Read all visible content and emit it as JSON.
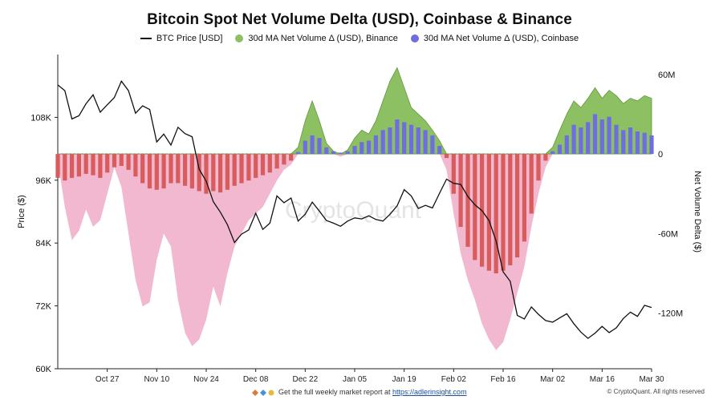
{
  "title": "Bitcoin Spot Net Volume Delta (USD), Coinbase & Binance",
  "legend": [
    {
      "label": "BTC Price [USD]",
      "color": "#111111",
      "kind": "line"
    },
    {
      "label": "30d MA Net Volume Δ (USD), Binance",
      "color": "#8cc063",
      "kind": "dot"
    },
    {
      "label": "30d MA Net Volume Δ (USD), Coinbase",
      "color": "#6e6ee0",
      "kind": "dot"
    }
  ],
  "watermark": "CryptoQuant",
  "footer": {
    "text": "Get the full weekly market report at ",
    "link": "https://adlerinsight.com",
    "copyright": "© CryptoQuant. All rights reserved"
  },
  "colors": {
    "price": "#111111",
    "binance_pos": "#8cc063",
    "binance_neg": "#f2b8cf",
    "coinbase_pos": "#6e6ee0",
    "coinbase_neg": "#d85c5c"
  },
  "chart_data": {
    "type": "line",
    "xlabel": "",
    "ylabel": "Price ($)",
    "ylabel_right": "Net Volume Delta ($)",
    "x_ticks": [
      "Oct 27",
      "Nov 10",
      "Nov 24",
      "Dec 08",
      "Dec 22",
      "Jan 05",
      "Jan 19",
      "Feb 02",
      "Feb 16",
      "Mar 02",
      "Mar 16",
      "Mar 30"
    ],
    "left_ticks": [
      "108K",
      "96K",
      "84K",
      "72K",
      "60K"
    ],
    "right_ticks": [
      "60M",
      "0",
      "-60M",
      "-120M"
    ],
    "ylim_left": [
      60000,
      120000
    ],
    "ylim_right": [
      -162000000,
      75000000
    ],
    "x_range_days": [
      -7,
      77
    ],
    "series": [
      {
        "name": "BTC Price [USD]",
        "points": [
          [
            -7,
            114200
          ],
          [
            -6,
            113100
          ],
          [
            -5,
            107700
          ],
          [
            -4,
            108300
          ],
          [
            -3,
            110600
          ],
          [
            -2,
            112300
          ],
          [
            -1,
            109000
          ],
          [
            0,
            110400
          ],
          [
            1,
            111800
          ],
          [
            2,
            114900
          ],
          [
            3,
            113100
          ],
          [
            4,
            108800
          ],
          [
            5,
            110200
          ],
          [
            6,
            109500
          ],
          [
            7,
            103300
          ],
          [
            8,
            104800
          ],
          [
            9,
            102700
          ],
          [
            10,
            106100
          ],
          [
            11,
            104900
          ],
          [
            12,
            104300
          ],
          [
            13,
            98100
          ],
          [
            14,
            95800
          ],
          [
            15,
            91900
          ],
          [
            16,
            89900
          ],
          [
            17,
            87500
          ],
          [
            18,
            84100
          ],
          [
            19,
            85700
          ],
          [
            20,
            86500
          ],
          [
            21,
            89700
          ],
          [
            22,
            86600
          ],
          [
            23,
            87800
          ],
          [
            24,
            93000
          ],
          [
            25,
            91700
          ],
          [
            26,
            92600
          ],
          [
            27,
            88200
          ],
          [
            28,
            89500
          ],
          [
            29,
            91800
          ],
          [
            30,
            90100
          ],
          [
            31,
            88300
          ],
          [
            32,
            87800
          ],
          [
            33,
            87200
          ],
          [
            34,
            88200
          ],
          [
            35,
            88800
          ],
          [
            36,
            88600
          ],
          [
            37,
            89200
          ],
          [
            38,
            88500
          ],
          [
            39,
            88200
          ],
          [
            40,
            89500
          ],
          [
            41,
            91100
          ],
          [
            42,
            94200
          ],
          [
            43,
            93000
          ],
          [
            44,
            90600
          ],
          [
            45,
            91200
          ],
          [
            46,
            90700
          ],
          [
            47,
            93500
          ],
          [
            48,
            96200
          ],
          [
            49,
            95400
          ],
          [
            50,
            95200
          ],
          [
            51,
            92900
          ],
          [
            52,
            91300
          ],
          [
            53,
            90200
          ],
          [
            54,
            88300
          ],
          [
            55,
            84400
          ],
          [
            56,
            78500
          ],
          [
            57,
            76700
          ],
          [
            58,
            70200
          ],
          [
            59,
            69500
          ],
          [
            60,
            71800
          ],
          [
            61,
            70400
          ],
          [
            62,
            69200
          ],
          [
            63,
            68900
          ],
          [
            64,
            69700
          ],
          [
            65,
            70500
          ],
          [
            66,
            68600
          ],
          [
            67,
            67000
          ],
          [
            68,
            65800
          ],
          [
            69,
            66800
          ],
          [
            70,
            68100
          ],
          [
            71,
            66900
          ],
          [
            72,
            67800
          ],
          [
            73,
            69600
          ],
          [
            74,
            70800
          ],
          [
            75,
            70000
          ],
          [
            76,
            72100
          ],
          [
            77,
            71700
          ]
        ]
      },
      {
        "name": "30d MA Net Volume Δ (USD), Binance",
        "points": [
          [
            -7,
            -5000000
          ],
          [
            -6,
            -40000000
          ],
          [
            -5,
            -65000000
          ],
          [
            -4,
            -58000000
          ],
          [
            -3,
            -42000000
          ],
          [
            -2,
            -55000000
          ],
          [
            -1,
            -50000000
          ],
          [
            0,
            -30000000
          ],
          [
            1,
            -10000000
          ],
          [
            2,
            -25000000
          ],
          [
            3,
            -60000000
          ],
          [
            4,
            -95000000
          ],
          [
            5,
            -115000000
          ],
          [
            6,
            -112000000
          ],
          [
            7,
            -80000000
          ],
          [
            8,
            -60000000
          ],
          [
            9,
            -70000000
          ],
          [
            10,
            -110000000
          ],
          [
            11,
            -135000000
          ],
          [
            12,
            -145000000
          ],
          [
            13,
            -140000000
          ],
          [
            14,
            -125000000
          ],
          [
            15,
            -100000000
          ],
          [
            16,
            -115000000
          ],
          [
            17,
            -90000000
          ],
          [
            18,
            -70000000
          ],
          [
            19,
            -60000000
          ],
          [
            20,
            -50000000
          ],
          [
            21,
            -45000000
          ],
          [
            22,
            -40000000
          ],
          [
            23,
            -30000000
          ],
          [
            24,
            -20000000
          ],
          [
            25,
            -12000000
          ],
          [
            26,
            -8000000
          ],
          [
            27,
            5000000
          ],
          [
            28,
            25000000
          ],
          [
            29,
            40000000
          ],
          [
            30,
            25000000
          ],
          [
            31,
            8000000
          ],
          [
            32,
            2000000
          ],
          [
            33,
            -2000000
          ],
          [
            34,
            3000000
          ],
          [
            35,
            12000000
          ],
          [
            36,
            18000000
          ],
          [
            37,
            15000000
          ],
          [
            38,
            25000000
          ],
          [
            39,
            40000000
          ],
          [
            40,
            55000000
          ],
          [
            41,
            65000000
          ],
          [
            42,
            50000000
          ],
          [
            43,
            35000000
          ],
          [
            44,
            30000000
          ],
          [
            45,
            25000000
          ],
          [
            46,
            18000000
          ],
          [
            47,
            10000000
          ],
          [
            48,
            -12000000
          ],
          [
            49,
            -45000000
          ],
          [
            50,
            -75000000
          ],
          [
            51,
            -95000000
          ],
          [
            52,
            -110000000
          ],
          [
            53,
            -128000000
          ],
          [
            54,
            -140000000
          ],
          [
            55,
            -148000000
          ],
          [
            56,
            -142000000
          ],
          [
            57,
            -125000000
          ],
          [
            58,
            -105000000
          ],
          [
            59,
            -85000000
          ],
          [
            60,
            -55000000
          ],
          [
            61,
            -30000000
          ],
          [
            62,
            -10000000
          ],
          [
            63,
            5000000
          ],
          [
            64,
            18000000
          ],
          [
            65,
            30000000
          ],
          [
            66,
            40000000
          ],
          [
            67,
            35000000
          ],
          [
            68,
            42000000
          ],
          [
            69,
            50000000
          ],
          [
            70,
            42000000
          ],
          [
            71,
            48000000
          ],
          [
            72,
            44000000
          ],
          [
            73,
            38000000
          ],
          [
            74,
            42000000
          ],
          [
            75,
            40000000
          ],
          [
            76,
            44000000
          ],
          [
            77,
            42000000
          ]
        ]
      },
      {
        "name": "30d MA Net Volume Δ (USD), Coinbase",
        "points": [
          [
            -7,
            -18000000
          ],
          [
            -6,
            -20000000
          ],
          [
            -5,
            -18000000
          ],
          [
            -4,
            -17000000
          ],
          [
            -3,
            -15000000
          ],
          [
            -2,
            -16000000
          ],
          [
            -1,
            -18000000
          ],
          [
            0,
            -14000000
          ],
          [
            1,
            -10000000
          ],
          [
            2,
            -9000000
          ],
          [
            3,
            -12000000
          ],
          [
            4,
            -17000000
          ],
          [
            5,
            -22000000
          ],
          [
            6,
            -26000000
          ],
          [
            7,
            -27000000
          ],
          [
            8,
            -26000000
          ],
          [
            9,
            -22000000
          ],
          [
            10,
            -22000000
          ],
          [
            11,
            -24000000
          ],
          [
            12,
            -26000000
          ],
          [
            13,
            -28000000
          ],
          [
            14,
            -30000000
          ],
          [
            15,
            -28000000
          ],
          [
            16,
            -29000000
          ],
          [
            17,
            -27000000
          ],
          [
            18,
            -24000000
          ],
          [
            19,
            -22000000
          ],
          [
            20,
            -20000000
          ],
          [
            21,
            -18000000
          ],
          [
            22,
            -16000000
          ],
          [
            23,
            -14000000
          ],
          [
            24,
            -11000000
          ],
          [
            25,
            -8000000
          ],
          [
            26,
            -5000000
          ],
          [
            27,
            1500000
          ],
          [
            28,
            10000000
          ],
          [
            29,
            14000000
          ],
          [
            30,
            12000000
          ],
          [
            31,
            5000000
          ],
          [
            32,
            2000000
          ],
          [
            33,
            1000000
          ],
          [
            34,
            2000000
          ],
          [
            35,
            6000000
          ],
          [
            36,
            9000000
          ],
          [
            37,
            10000000
          ],
          [
            38,
            14000000
          ],
          [
            39,
            18000000
          ],
          [
            40,
            20000000
          ],
          [
            41,
            26000000
          ],
          [
            42,
            24000000
          ],
          [
            43,
            22000000
          ],
          [
            44,
            20000000
          ],
          [
            45,
            18000000
          ],
          [
            46,
            14000000
          ],
          [
            47,
            6000000
          ],
          [
            48,
            -3000000
          ],
          [
            49,
            -30000000
          ],
          [
            50,
            -55000000
          ],
          [
            51,
            -70000000
          ],
          [
            52,
            -80000000
          ],
          [
            53,
            -85000000
          ],
          [
            54,
            -88000000
          ],
          [
            55,
            -90000000
          ],
          [
            56,
            -88000000
          ],
          [
            57,
            -84000000
          ],
          [
            58,
            -78000000
          ],
          [
            59,
            -66000000
          ],
          [
            60,
            -45000000
          ],
          [
            61,
            -20000000
          ],
          [
            62,
            -5000000
          ],
          [
            63,
            2000000
          ],
          [
            64,
            7000000
          ],
          [
            65,
            14000000
          ],
          [
            66,
            22000000
          ],
          [
            67,
            20000000
          ],
          [
            68,
            24000000
          ],
          [
            69,
            30000000
          ],
          [
            70,
            26000000
          ],
          [
            71,
            28000000
          ],
          [
            72,
            22000000
          ],
          [
            73,
            18000000
          ],
          [
            74,
            20000000
          ],
          [
            75,
            17000000
          ],
          [
            76,
            16000000
          ],
          [
            77,
            14000000
          ]
        ]
      }
    ]
  }
}
